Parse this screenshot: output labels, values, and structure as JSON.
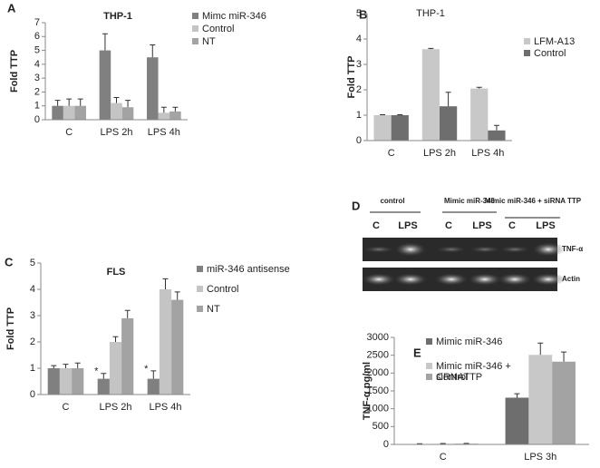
{
  "chart_data": [
    {
      "type": "bar",
      "label": "A",
      "title": "THP-1",
      "ylabel": "Fold TTP",
      "categories": [
        "C",
        "LPS 2h",
        "LPS 4h"
      ],
      "series": [
        {
          "name": "Mimc miR-346",
          "color": "#808080",
          "values": [
            1,
            5,
            4.5
          ],
          "errors": [
            0.4,
            1.2,
            0.9
          ]
        },
        {
          "name": "Control",
          "color": "#c4c4c4",
          "values": [
            1,
            1.2,
            0.5
          ],
          "errors": [
            0.5,
            0.4,
            0.4
          ]
        },
        {
          "name": "NT",
          "color": "#a3a3a3",
          "values": [
            1,
            0.9,
            0.6
          ],
          "errors": [
            0.5,
            0.5,
            0.3
          ]
        }
      ],
      "ylim": [
        0,
        7
      ],
      "yticks": [
        0,
        1,
        2,
        3,
        4,
        5,
        6,
        7
      ],
      "legend": "upper right"
    },
    {
      "type": "bar",
      "label": "B",
      "title": "THP-1",
      "ylabel": "Fold TTP",
      "categories": [
        "C",
        "LPS 2h",
        "LPS 4h"
      ],
      "series": [
        {
          "name": "LFM-A13",
          "color": "#c8c8c8",
          "values": [
            1,
            3.6,
            2.05
          ],
          "errors": [
            0.02,
            0.03,
            0.05
          ]
        },
        {
          "name": "Control",
          "color": "#6e6e6e",
          "values": [
            1,
            1.35,
            0.4
          ],
          "errors": [
            0.02,
            0.55,
            0.2
          ]
        }
      ],
      "ylim": [
        0,
        5
      ],
      "yticks": [
        0,
        1,
        2,
        3,
        4,
        5
      ],
      "legend": "upper right"
    },
    {
      "type": "bar",
      "label": "C",
      "title": "FLS",
      "ylabel": "Fold TTP",
      "categories": [
        "C",
        "LPS 2h",
        "LPS 4h"
      ],
      "series": [
        {
          "name": "miR-346 antisense",
          "color": "#808080",
          "values": [
            1,
            0.6,
            0.6
          ],
          "errors": [
            0.1,
            0.2,
            0.3
          ]
        },
        {
          "name": "Control",
          "color": "#c4c4c4",
          "values": [
            1,
            2.0,
            4.0
          ],
          "errors": [
            0.15,
            0.2,
            0.4
          ]
        },
        {
          "name": "NT",
          "color": "#a3a3a3",
          "values": [
            1,
            2.9,
            3.6
          ],
          "errors": [
            0.2,
            0.3,
            0.3
          ]
        }
      ],
      "annotations": [
        {
          "text": "*",
          "category": "LPS 2h",
          "series": "miR-346 antisense"
        },
        {
          "text": "*",
          "category": "LPS 4h",
          "series": "miR-346 antisense"
        }
      ],
      "ylim": [
        0,
        5
      ],
      "yticks": [
        0,
        1,
        2,
        3,
        4,
        5
      ],
      "legend": "upper right"
    },
    {
      "type": "bar",
      "label": "E",
      "ylabel": "TNF-α pg/ml",
      "categories": [
        "C",
        "LPS 3h"
      ],
      "series": [
        {
          "name": "Mimic miR-346",
          "color": "#6e6e6e",
          "values": [
            10,
            1310
          ],
          "errors": [
            10,
            110
          ]
        },
        {
          "name": "Mimic miR-346 + siRNATTP",
          "color": "#c8c8c8",
          "values": [
            15,
            2510
          ],
          "errors": [
            10,
            330
          ]
        },
        {
          "name": "Control",
          "color": "#a3a3a3",
          "values": [
            20,
            2320
          ],
          "errors": [
            10,
            270
          ]
        }
      ],
      "ylim": [
        0,
        3000
      ],
      "yticks": [
        0,
        500,
        1000,
        1500,
        2000,
        2500,
        3000
      ],
      "legend": "upper left"
    }
  ],
  "gel": {
    "label": "D",
    "groups": [
      "control",
      "Mimic miR-346",
      "Mimic miR-346 + siRNA TTP"
    ],
    "lanes": [
      "C",
      "LPS",
      "C",
      "LPS",
      "C",
      "LPS"
    ],
    "bands": [
      "TNF-α",
      "Actin"
    ]
  }
}
